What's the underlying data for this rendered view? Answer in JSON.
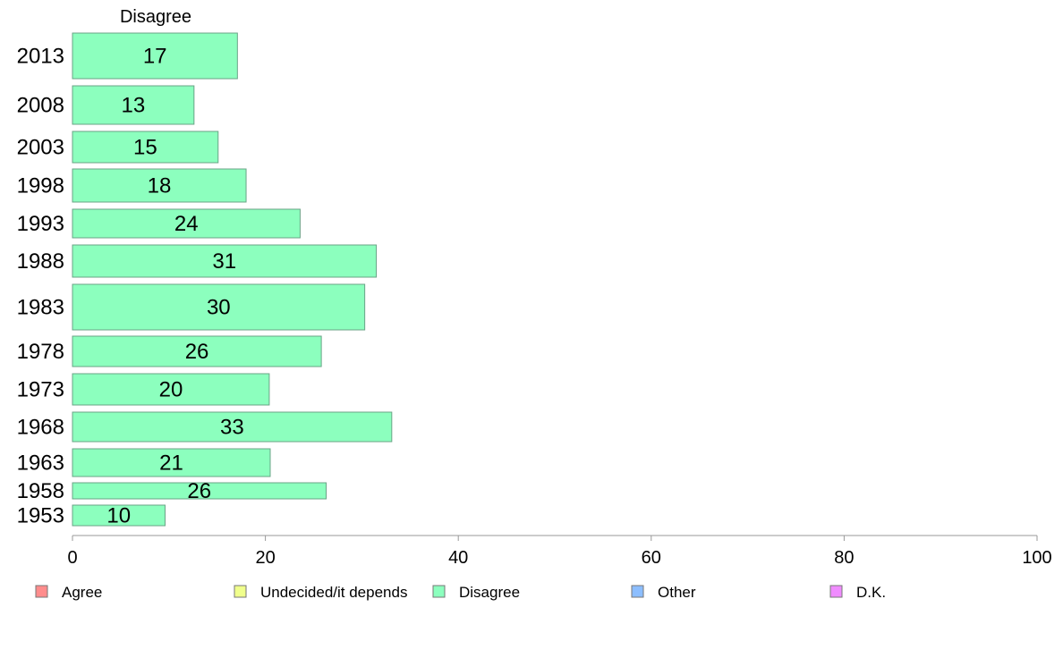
{
  "chart_data": {
    "type": "bar",
    "orientation": "horizontal",
    "panel_title": "Disagree",
    "categories": [
      "2013",
      "2008",
      "2003",
      "1998",
      "1993",
      "1988",
      "1983",
      "1978",
      "1973",
      "1968",
      "1963",
      "1958",
      "1953"
    ],
    "series": [
      {
        "name": "Disagree",
        "values": [
          17.1,
          12.6,
          15.1,
          18,
          23.6,
          31.5,
          30.3,
          25.8,
          20.4,
          33.1,
          20.5,
          26.3,
          9.6
        ]
      }
    ],
    "data_labels": [
      "17",
      "13",
      "15",
      "18",
      "24",
      "31",
      "30",
      "26",
      "20",
      "33",
      "21",
      "26",
      "10"
    ],
    "xlim": [
      0,
      100
    ],
    "xticks": [
      0,
      20,
      40,
      60,
      80,
      100
    ],
    "bar_color": "#8cffbe",
    "bar_stroke": "#6aa386",
    "legend": {
      "placement": "bottom",
      "items": [
        {
          "label": "Agree",
          "color": "#ff8c8c"
        },
        {
          "label": "Undecided/it depends",
          "color": "#f0ff8c"
        },
        {
          "label": "Disagree",
          "color": "#8cffbe"
        },
        {
          "label": "Other",
          "color": "#8cbeff"
        },
        {
          "label": "D.K.",
          "color": "#f08cff"
        }
      ]
    }
  }
}
